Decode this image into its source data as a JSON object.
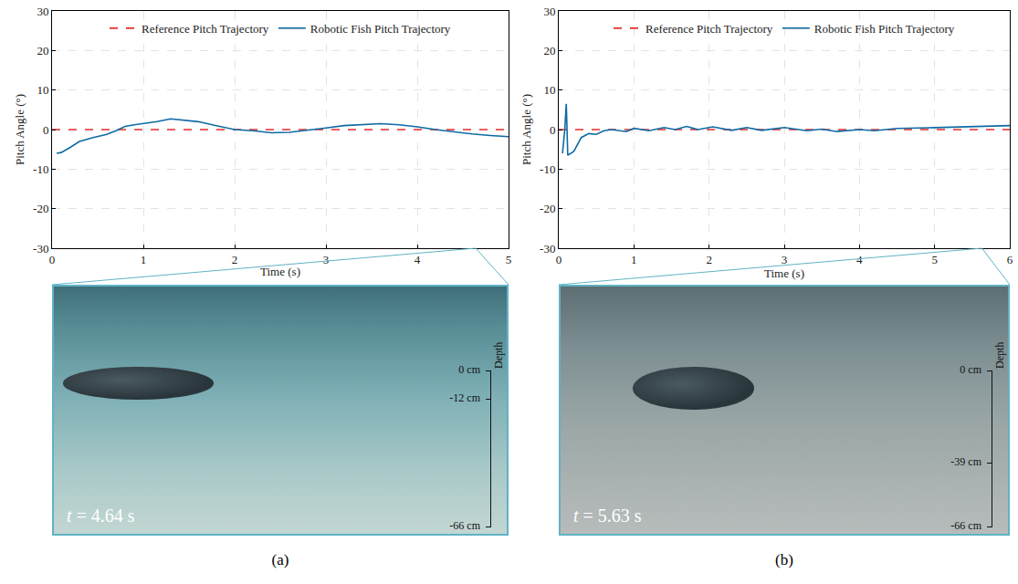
{
  "chart_data": [
    {
      "type": "line",
      "x_label": "Time (s)",
      "y_label": "Pitch Angle (°)",
      "xlim": [
        0,
        5
      ],
      "xticks": [
        0,
        1,
        2,
        3,
        4,
        5
      ],
      "ylim": [
        -30,
        30
      ],
      "yticks": [
        -30,
        -20,
        -10,
        0,
        10,
        20,
        30
      ],
      "grid": true,
      "legend": "top",
      "series": [
        {
          "name": "Reference Pitch Trajectory",
          "color": "#e8312f",
          "line_style": "dashed",
          "x": [
            0,
            5
          ],
          "values": [
            0,
            0
          ]
        },
        {
          "name": "Robotic Fish Pitch Trajectory",
          "color": "#0e6aa3",
          "line_style": "solid",
          "x": [
            0.05,
            0.1,
            0.2,
            0.3,
            0.45,
            0.6,
            0.7,
            0.8,
            0.9,
            1.0,
            1.15,
            1.3,
            1.45,
            1.6,
            1.8,
            2.0,
            2.2,
            2.4,
            2.6,
            2.8,
            3.0,
            3.2,
            3.4,
            3.6,
            3.8,
            4.0,
            4.2,
            4.4,
            4.6,
            4.8,
            5.0
          ],
          "values": [
            -6,
            -5.8,
            -4.5,
            -3,
            -2,
            -1.2,
            -0.3,
            0.8,
            1.2,
            1.5,
            2,
            2.7,
            2.3,
            2,
            1,
            0,
            -0.3,
            -0.8,
            -0.7,
            -0.2,
            0.4,
            1,
            1.3,
            1.5,
            1.2,
            0.7,
            0,
            -0.6,
            -1.1,
            -1.5,
            -1.8
          ]
        }
      ]
    },
    {
      "type": "line",
      "x_label": "Time (s)",
      "y_label": "Pitch Angle (°)",
      "xlim": [
        0,
        6
      ],
      "xticks": [
        0,
        1,
        2,
        3,
        4,
        5,
        6
      ],
      "ylim": [
        -30,
        30
      ],
      "yticks": [
        -30,
        -20,
        -10,
        0,
        10,
        20,
        30
      ],
      "grid": true,
      "legend": "top",
      "series": [
        {
          "name": "Reference Pitch Trajectory",
          "color": "#e8312f",
          "line_style": "dashed",
          "x": [
            0,
            6
          ],
          "values": [
            0,
            0
          ]
        },
        {
          "name": "Robotic Fish Pitch Trajectory",
          "color": "#0e6aa3",
          "line_style": "solid",
          "x": [
            0.05,
            0.08,
            0.1,
            0.12,
            0.2,
            0.3,
            0.4,
            0.5,
            0.6,
            0.7,
            0.9,
            1.0,
            1.2,
            1.4,
            1.55,
            1.7,
            1.85,
            2.05,
            2.3,
            2.5,
            2.7,
            3.0,
            3.3,
            3.5,
            3.7,
            4.0,
            4.2,
            4.5,
            5.0,
            5.5,
            6.0
          ],
          "values": [
            -6,
            0,
            6.5,
            -6.5,
            -5.5,
            -2,
            -1,
            -1.2,
            -0.3,
            0,
            -0.5,
            0.3,
            -0.3,
            0.5,
            0,
            0.8,
            0,
            0.7,
            -0.2,
            0.5,
            -0.2,
            0.5,
            -0.3,
            0.1,
            -0.5,
            0,
            -0.3,
            0.3,
            0.5,
            0.8,
            1
          ]
        }
      ]
    }
  ],
  "panels": [
    {
      "label": "(a)",
      "snapshot": {
        "time": 4.64,
        "time_label": "t = 4.64 s",
        "depth_title": "Depth",
        "depth_ticks": [
          {
            "value": 0,
            "label": "0 cm"
          },
          {
            "value": -12,
            "label": "-12 cm"
          },
          {
            "value": -66,
            "label": "-66 cm"
          }
        ]
      }
    },
    {
      "label": "(b)",
      "snapshot": {
        "time": 5.63,
        "time_label": "t = 5.63 s",
        "depth_title": "Depth",
        "depth_ticks": [
          {
            "value": 0,
            "label": "0 cm"
          },
          {
            "value": -39,
            "label": "-39 cm"
          },
          {
            "value": -66,
            "label": "-66 cm"
          }
        ]
      }
    }
  ]
}
